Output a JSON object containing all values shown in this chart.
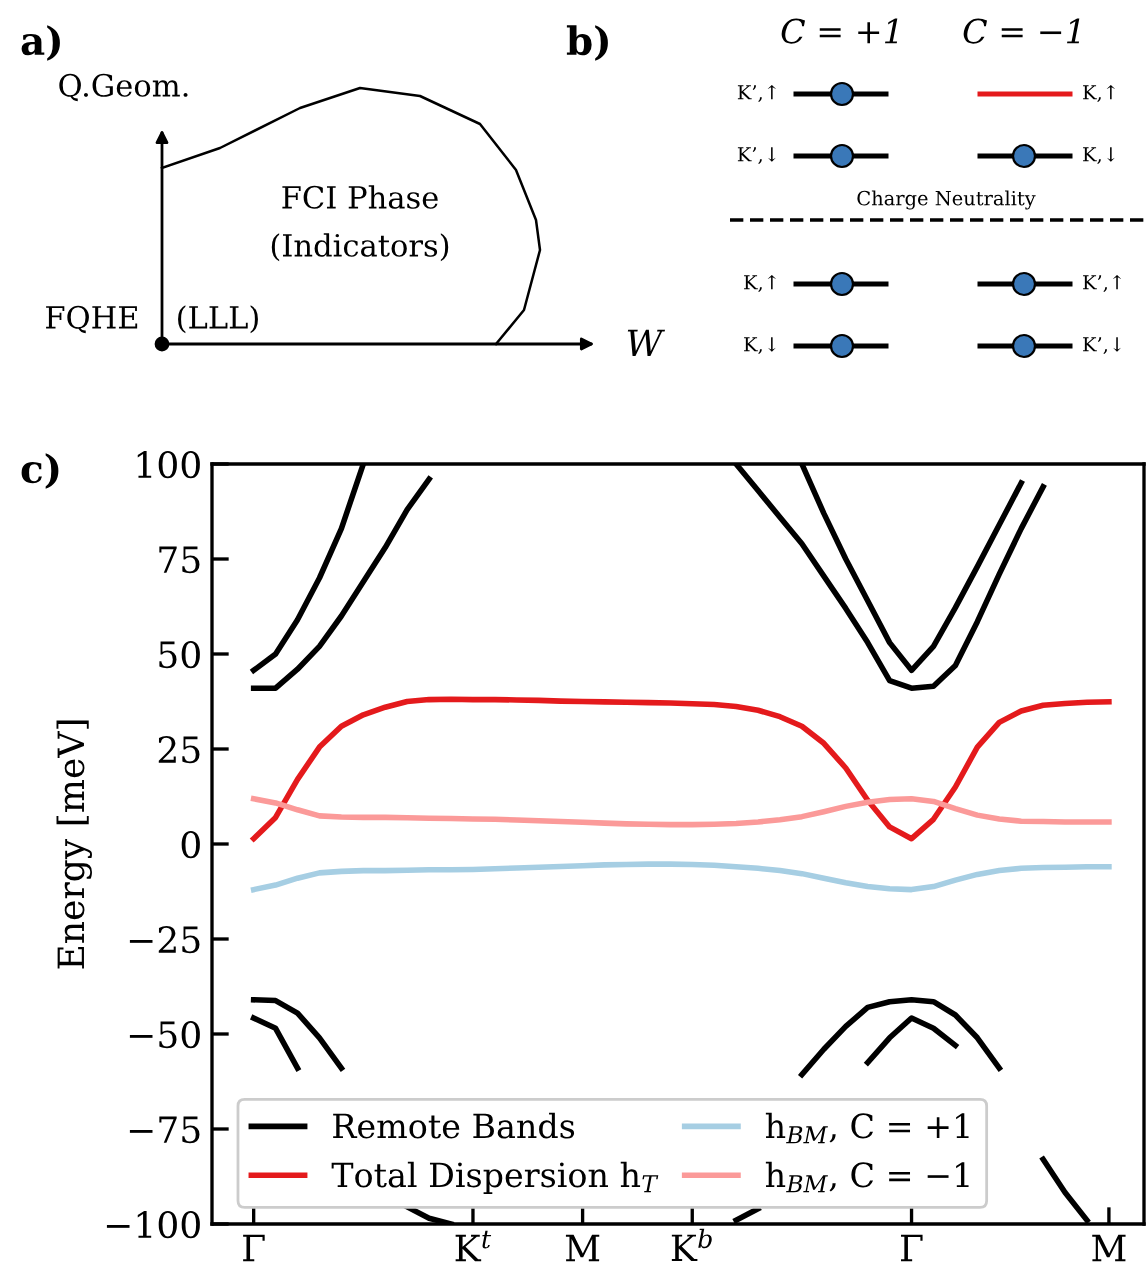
{
  "chart_data": [
    {
      "type": "other",
      "title": "a)",
      "annotations": [
        "Q.Geom.",
        "FCI Phase",
        "(Indicators)",
        "FQHE",
        "(LLL)",
        "W"
      ]
    },
    {
      "type": "other",
      "title": "b)",
      "annotations": [
        "C = +1",
        "C = −1",
        "K’,↑",
        "K’,↓",
        "K,↑",
        "K,↓",
        "Charge Neutrality",
        "K,↑",
        "K,↓",
        "K’,↑",
        "K’,↓"
      ]
    },
    {
      "type": "line",
      "title": "c)",
      "ylabel": "Energy [meV]",
      "ylim": [
        -100,
        100
      ],
      "categories": [
        "Γ",
        null,
        null,
        null,
        null,
        null,
        null,
        null,
        null,
        null,
        "K$^{t}$",
        null,
        null,
        null,
        null,
        "M",
        null,
        null,
        null,
        null,
        "K$^{b}$",
        null,
        null,
        null,
        null,
        null,
        null,
        null,
        null,
        null,
        "Γ",
        null,
        null,
        null,
        null,
        null,
        null,
        null,
        null,
        "M"
      ],
      "yticks": [
        -100,
        -75,
        -50,
        -25,
        0,
        25,
        50,
        75,
        100
      ],
      "grid": false,
      "legend": "bottom left",
      "marker": "none",
      "line_style": "solid",
      "series": [
        {
          "name": "Remote Bands",
          "color": "#000000",
          "values": [
            45.7,
            50,
            59,
            70,
            83,
            100,
            null,
            null,
            null,
            null,
            null,
            null,
            null,
            null,
            null,
            null,
            null,
            null,
            null,
            null,
            null,
            null,
            null,
            null,
            null,
            null,
            null,
            null,
            null,
            null,
            null,
            null,
            null,
            null,
            null,
            null,
            null,
            null,
            null,
            null
          ]
        },
        {
          "color": "#000000",
          "values": [
            41,
            41,
            46,
            52,
            60,
            69,
            78,
            88,
            96,
            null,
            null,
            null,
            null,
            null,
            null,
            null,
            null,
            null,
            null,
            null,
            null,
            null,
            null,
            null,
            null,
            null,
            null,
            null,
            null,
            null,
            null,
            null,
            null,
            null,
            null,
            null,
            null,
            null,
            null,
            null
          ]
        },
        {
          "color": "#000000",
          "values": [
            null,
            null,
            null,
            null,
            null,
            null,
            null,
            null,
            null,
            null,
            null,
            null,
            null,
            null,
            null,
            null,
            null,
            null,
            null,
            null,
            null,
            null,
            100,
            93,
            86,
            79,
            70.5,
            62,
            53,
            43,
            41,
            41.5,
            47,
            58.5,
            71,
            83,
            94,
            null,
            null,
            null
          ]
        },
        {
          "color": "#000000",
          "values": [
            null,
            null,
            null,
            null,
            null,
            null,
            null,
            null,
            null,
            null,
            null,
            null,
            null,
            null,
            null,
            null,
            null,
            null,
            null,
            null,
            null,
            null,
            null,
            null,
            null,
            100,
            87,
            75,
            64,
            53,
            45.7,
            52,
            62.2,
            73,
            84,
            95,
            null,
            null,
            null,
            null
          ]
        },
        {
          "color": "#000000",
          "values": [
            -45.8,
            -48.5,
            -59,
            null,
            null,
            null,
            null,
            null,
            null,
            null,
            null,
            null,
            null,
            null,
            null,
            null,
            null,
            null,
            null,
            null,
            null,
            null,
            null,
            null,
            null,
            null,
            null,
            null,
            null,
            null,
            null,
            null,
            null,
            null,
            null,
            null,
            null,
            null,
            null,
            null
          ]
        },
        {
          "color": "#000000",
          "values": [
            -41,
            -41.2,
            -44.5,
            -51,
            -59,
            null,
            null,
            -95.5,
            -98.5,
            -100,
            null,
            null,
            null,
            null,
            null,
            null,
            null,
            null,
            null,
            null,
            null,
            null,
            null,
            null,
            null,
            null,
            null,
            null,
            null,
            null,
            null,
            null,
            null,
            null,
            null,
            null,
            null,
            null,
            null,
            null
          ]
        },
        {
          "color": "#000000",
          "values": [
            null,
            null,
            null,
            null,
            null,
            null,
            null,
            null,
            null,
            null,
            null,
            null,
            null,
            null,
            null,
            null,
            null,
            null,
            null,
            null,
            null,
            null,
            -99,
            -96,
            null,
            -60.7,
            -54,
            -48,
            -43,
            -41.5,
            -41,
            -41.5,
            -45,
            -51,
            -59,
            null,
            -83,
            -91.7,
            -99,
            null
          ]
        },
        {
          "color": "#000000",
          "values": [
            null,
            null,
            null,
            null,
            null,
            null,
            null,
            null,
            null,
            null,
            null,
            null,
            null,
            null,
            null,
            null,
            null,
            null,
            null,
            null,
            null,
            null,
            null,
            null,
            null,
            null,
            null,
            null,
            -57.5,
            -51,
            -45.8,
            -48.5,
            -53,
            null,
            null,
            null,
            null,
            null,
            null,
            null
          ]
        },
        {
          "name": "Total Dispersion h$_{T}$",
          "color": "#e41a1c",
          "values": [
            1.4,
            7,
            17,
            25.5,
            31,
            34,
            36,
            37.5,
            38,
            38.1,
            38,
            38,
            37.9,
            37.8,
            37.6,
            37.5,
            37.4,
            37.3,
            37.2,
            37.1,
            36.9,
            36.7,
            36.2,
            35.2,
            33.5,
            31,
            26.5,
            20,
            11.5,
            4.5,
            1.4,
            6.5,
            15,
            25.5,
            32,
            35,
            36.5,
            37,
            37.3,
            37.4
          ]
        },
        {
          "name": "h$_{BM}$, C = +1",
          "color": "#a6cee3",
          "values": [
            -12,
            -10.8,
            -9,
            -7.6,
            -7.2,
            -7,
            -7,
            -6.9,
            -6.8,
            -6.8,
            -6.7,
            -6.5,
            -6.3,
            -6.1,
            -5.9,
            -5.7,
            -5.5,
            -5.4,
            -5.3,
            -5.3,
            -5.4,
            -5.6,
            -6,
            -6.4,
            -7,
            -7.8,
            -9,
            -10.2,
            -11.2,
            -11.8,
            -12,
            -11.2,
            -9.5,
            -8,
            -7,
            -6.4,
            -6.2,
            -6.1,
            -6,
            -6
          ]
        },
        {
          "name": "h$_{BM}$, C = −1",
          "color": "#fb9a99",
          "values": [
            11.9,
            10.8,
            9,
            7.4,
            7.1,
            7,
            7,
            6.9,
            6.8,
            6.7,
            6.6,
            6.5,
            6.3,
            6.1,
            5.9,
            5.7,
            5.5,
            5.3,
            5.2,
            5.1,
            5.1,
            5.2,
            5.4,
            5.8,
            6.4,
            7.2,
            8.5,
            9.9,
            11,
            11.7,
            11.9,
            11.2,
            9.3,
            7.6,
            6.6,
            6,
            5.9,
            5.8,
            5.8,
            5.8
          ]
        }
      ]
    }
  ]
}
